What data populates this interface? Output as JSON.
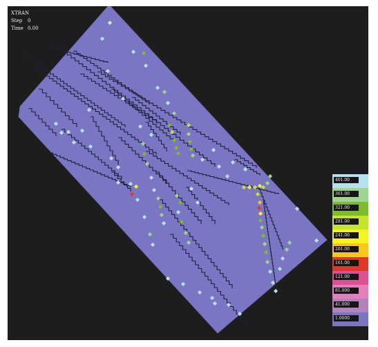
{
  "app_title": "XTRAN",
  "step": {
    "label": "Step",
    "value": "0"
  },
  "time": {
    "label": "Time",
    "value": "0.00"
  },
  "colors": {
    "background": "#1d1d1d",
    "domain": "#7b76c3",
    "fracture": "#1e1f3a"
  },
  "legend": {
    "entries": [
      {
        "label": "401.00",
        "color": "#b6dff0"
      },
      {
        "label": "361.00",
        "color": "#9fd493"
      },
      {
        "label": "321.00",
        "color": "#7dbd2c"
      },
      {
        "label": "281.00",
        "color": "#c6e52a"
      },
      {
        "label": "241.00",
        "color": "#f3f51d"
      },
      {
        "label": "201.00",
        "color": "#f7c817"
      },
      {
        "label": "161.00",
        "color": "#e23627"
      },
      {
        "label": "121.00",
        "color": "#e04e93"
      },
      {
        "label": "81.000",
        "color": "#e77dbd"
      },
      {
        "label": "41.000",
        "color": "#b382bc"
      },
      {
        "label": "1.0000",
        "color": "#7b76c3"
      }
    ]
  }
}
